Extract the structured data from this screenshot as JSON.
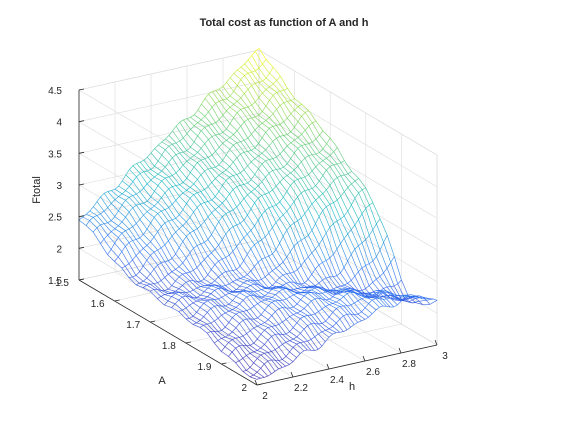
{
  "chart_data": {
    "type": "surface",
    "title": "Total cost as function of A and h",
    "xlabel": "h",
    "ylabel": "A",
    "zlabel": "Ftotal",
    "xlim": [
      2,
      3
    ],
    "ylim": [
      1.5,
      2
    ],
    "zlim": [
      1.5,
      4.5
    ],
    "x_ticks": [
      "2",
      "2.2",
      "2.4",
      "2.6",
      "2.8",
      "3"
    ],
    "y_ticks": [
      "1.5",
      "1.6",
      "1.7",
      "1.8",
      "1.9",
      "2"
    ],
    "z_ticks": [
      "1.5",
      "2",
      "2.5",
      "3",
      "3.5",
      "4",
      "4.5"
    ],
    "grid": true,
    "colormap": [
      "#3e26a8",
      "#2e70f5",
      "#19b8c6",
      "#68cd69",
      "#f9fb0e"
    ],
    "mesh_h_values": [
      2.0,
      2.02,
      2.04,
      2.06,
      2.08,
      2.1,
      2.12,
      2.14,
      2.16,
      2.18,
      2.2,
      2.22,
      2.24,
      2.26,
      2.28,
      2.3,
      2.32,
      2.34,
      2.36,
      2.38,
      2.4,
      2.42,
      2.44,
      2.46,
      2.48,
      2.5,
      2.52,
      2.54,
      2.56,
      2.58,
      2.6,
      2.62,
      2.64,
      2.66,
      2.68,
      2.7,
      2.72,
      2.74,
      2.76,
      2.78,
      2.8,
      2.82,
      2.84,
      2.86,
      2.88,
      2.9,
      2.92,
      2.94,
      2.96,
      2.98,
      3.0
    ],
    "mesh_A_values": [
      1.5,
      1.52,
      1.54,
      1.56,
      1.58,
      1.6,
      1.62,
      1.64,
      1.66,
      1.68,
      1.7,
      1.72,
      1.74,
      1.76,
      1.78,
      1.8,
      1.82,
      1.84,
      1.86,
      1.88,
      1.9,
      1.92,
      1.94,
      1.96,
      1.98,
      2.0
    ],
    "corner_values": [
      {
        "h": 2,
        "A": 1.5,
        "Ftotal": 2.45
      },
      {
        "h": 3,
        "A": 1.5,
        "Ftotal": 4.5
      },
      {
        "h": 3,
        "A": 2,
        "Ftotal": 2.6
      },
      {
        "h": 2,
        "A": 2,
        "Ftotal": 1.55
      }
    ],
    "valley": {
      "Ftotal_min": 1.5
    }
  }
}
